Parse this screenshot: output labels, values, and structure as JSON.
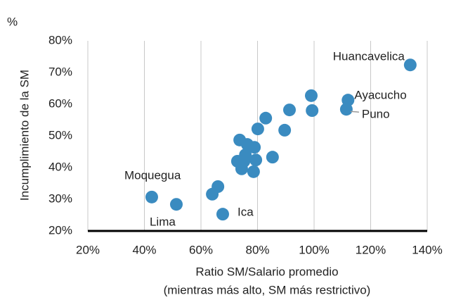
{
  "chart_data": {
    "type": "scatter",
    "y_unit": "%",
    "xlabel": [
      "Ratio SM/Salario promedio",
      "(mientras más alto, SM más restrictivo)"
    ],
    "ylabel": "Incumplimiento de la SM",
    "xlim": [
      20,
      140
    ],
    "ylim": [
      20,
      80
    ],
    "xticks": [
      {
        "value": 20,
        "label": "20%"
      },
      {
        "value": 40,
        "label": "40%"
      },
      {
        "value": 60,
        "label": "60%"
      },
      {
        "value": 80,
        "label": "80%"
      },
      {
        "value": 100,
        "label": "100%"
      },
      {
        "value": 120,
        "label": "120%"
      },
      {
        "value": 140,
        "label": "140%"
      }
    ],
    "yticks": [
      {
        "value": 20,
        "label": "20%"
      },
      {
        "value": 30,
        "label": "30%"
      },
      {
        "value": 40,
        "label": "40%"
      },
      {
        "value": 50,
        "label": "50%"
      },
      {
        "value": 60,
        "label": "60%"
      },
      {
        "value": 70,
        "label": "70%"
      },
      {
        "value": 80,
        "label": "80%"
      }
    ],
    "grid": "x",
    "color": "#3a8bc0",
    "x": [
      134,
      112,
      111.4,
      99,
      99.3,
      91.3,
      89.6,
      82.9,
      80.1,
      73.7,
      76.4,
      78.9,
      75.7,
      85.3,
      79.4,
      75.2,
      72.9,
      74.4,
      78.6,
      66,
      64,
      42.6,
      51.3,
      67.7
    ],
    "values": [
      72.4,
      61.3,
      58.4,
      62.7,
      58,
      58.2,
      51.8,
      55.6,
      52.2,
      48.7,
      47.3,
      46.4,
      44,
      43.3,
      42.4,
      42,
      42,
      39.6,
      38.7,
      34,
      31.6,
      30.7,
      28.4,
      25.3
    ],
    "labels": [
      "Huancavelica",
      "Ayacucho",
      "Puno",
      null,
      null,
      null,
      null,
      null,
      null,
      null,
      null,
      null,
      null,
      null,
      null,
      null,
      null,
      null,
      null,
      null,
      null,
      "Moquegua",
      "Lima",
      "Ica"
    ]
  }
}
